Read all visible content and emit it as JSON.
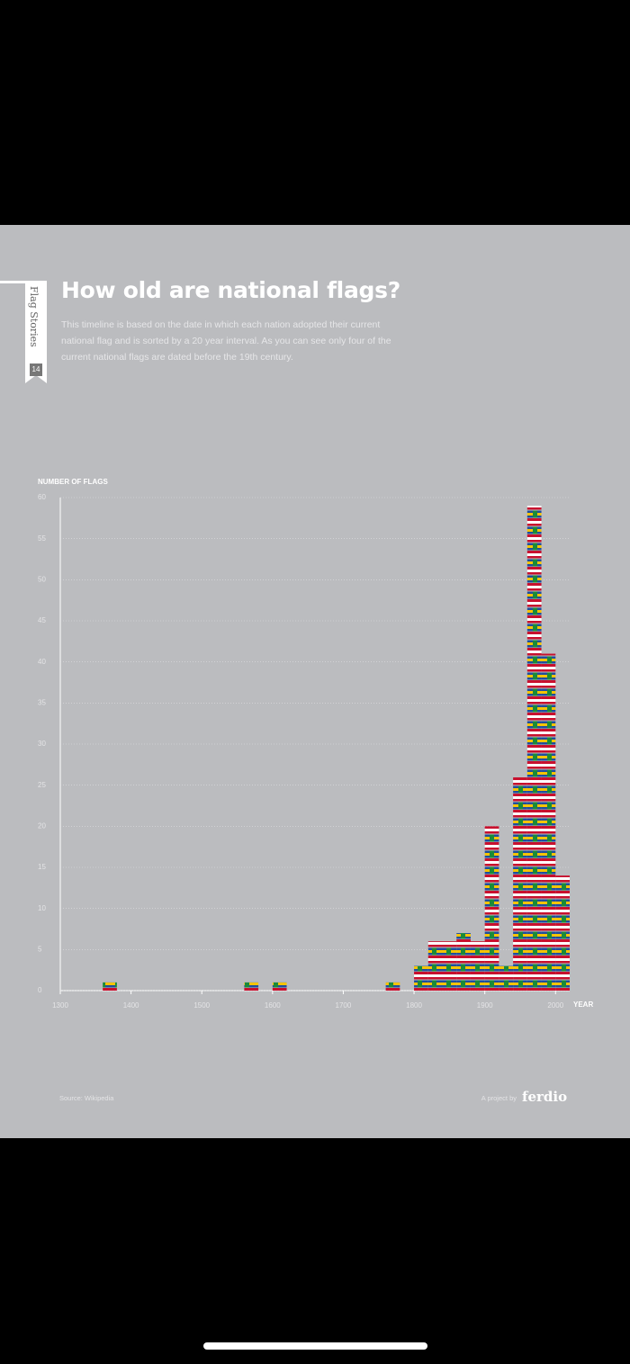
{
  "chart_data": {
    "type": "histogram",
    "title": "How old are national flags?",
    "subtitle": "This timeline is based on the date in which each nation adopted their current national flag and is sorted by a 20 year interval. As you can see only four of the current national flags are dated before the 19th century.",
    "series_label": "Flag Stories",
    "page_number": "14",
    "y_label": "NUMBER OF FLAGS",
    "x_label": "YEAR",
    "source": "Source: Wikipedia",
    "credit": "A project by",
    "brand": "ferdio",
    "bins": [
      1360,
      1380,
      1400,
      1420,
      1440,
      1460,
      1480,
      1500,
      1520,
      1540,
      1560,
      1580,
      1600,
      1620,
      1640,
      1660,
      1680,
      1700,
      1720,
      1740,
      1760,
      1780,
      1800,
      1820,
      1840,
      1860,
      1880,
      1900,
      1920,
      1940,
      1960,
      1980,
      2000,
      2020
    ],
    "values": [
      1,
      0,
      0,
      0,
      0,
      0,
      0,
      0,
      0,
      0,
      1,
      0,
      1,
      0,
      0,
      0,
      0,
      0,
      0,
      0,
      1,
      0,
      3,
      6,
      6,
      7,
      6,
      20,
      3,
      26,
      59,
      41,
      14
    ],
    "xlim": [
      1300,
      2020
    ],
    "xticks": [
      1300,
      1400,
      1500,
      1600,
      1700,
      1800,
      1900,
      2000
    ],
    "ylim": [
      0,
      60
    ],
    "yticks": [
      0,
      5,
      10,
      15,
      20,
      25,
      30,
      35,
      40,
      45,
      50,
      55,
      60
    ],
    "grid": true
  }
}
